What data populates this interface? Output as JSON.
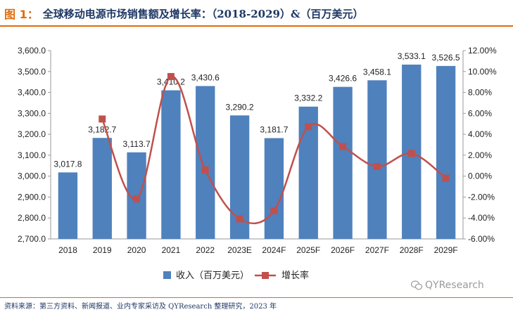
{
  "figure": {
    "label": "图 1：",
    "title": "全球移动电源市场销售额及增长率：（2018-2029）&（百万美元）"
  },
  "source": "资料来源：第三方资料、新闻报道、业内专家采访及 QYResearch 整理研究，2023 年",
  "watermark": {
    "text": "QYResearch",
    "icon": "wechat-icon"
  },
  "colors": {
    "bar": "#4f81bd",
    "line": "#c0504d"
  },
  "chart_data": {
    "type": "bar",
    "categories": [
      "2018",
      "2019",
      "2020",
      "2021",
      "2022",
      "2023E",
      "2024F",
      "2025F",
      "2026F",
      "2027F",
      "2028F",
      "2029F"
    ],
    "series": [
      {
        "name": "收入（百万美元）",
        "type": "bar",
        "axis": "left",
        "values": [
          3017.8,
          3182.7,
          3113.7,
          3410.2,
          3430.6,
          3290.2,
          3181.7,
          3332.2,
          3426.6,
          3458.1,
          3533.1,
          3526.5
        ],
        "labels": [
          "3,017.8",
          "3,182.7",
          "3,113.7",
          "3,410.2",
          "3,430.6",
          "3,290.2",
          "3,181.7",
          "3,332.2",
          "3,426.6",
          "3,458.1",
          "3,533.1",
          "3,526.5"
        ]
      },
      {
        "name": "增长率",
        "type": "line",
        "axis": "right",
        "values": [
          null,
          5.46,
          -2.17,
          9.52,
          0.6,
          -4.09,
          -3.3,
          4.73,
          2.83,
          0.92,
          2.17,
          -0.19
        ]
      }
    ],
    "y_left": {
      "min": 2700,
      "max": 3600,
      "ticks": [
        "2,700.0",
        "2,800.0",
        "2,900.0",
        "3,000.0",
        "3,100.0",
        "3,200.0",
        "3,300.0",
        "3,400.0",
        "3,500.0",
        "3,600.0"
      ]
    },
    "y_right": {
      "min": -6,
      "max": 12,
      "ticks": [
        "-6.00%",
        "-4.00%",
        "-2.00%",
        "0.00%",
        "2.00%",
        "4.00%",
        "6.00%",
        "8.00%",
        "10.00%",
        "12.00%"
      ]
    },
    "legend": "bottom"
  }
}
